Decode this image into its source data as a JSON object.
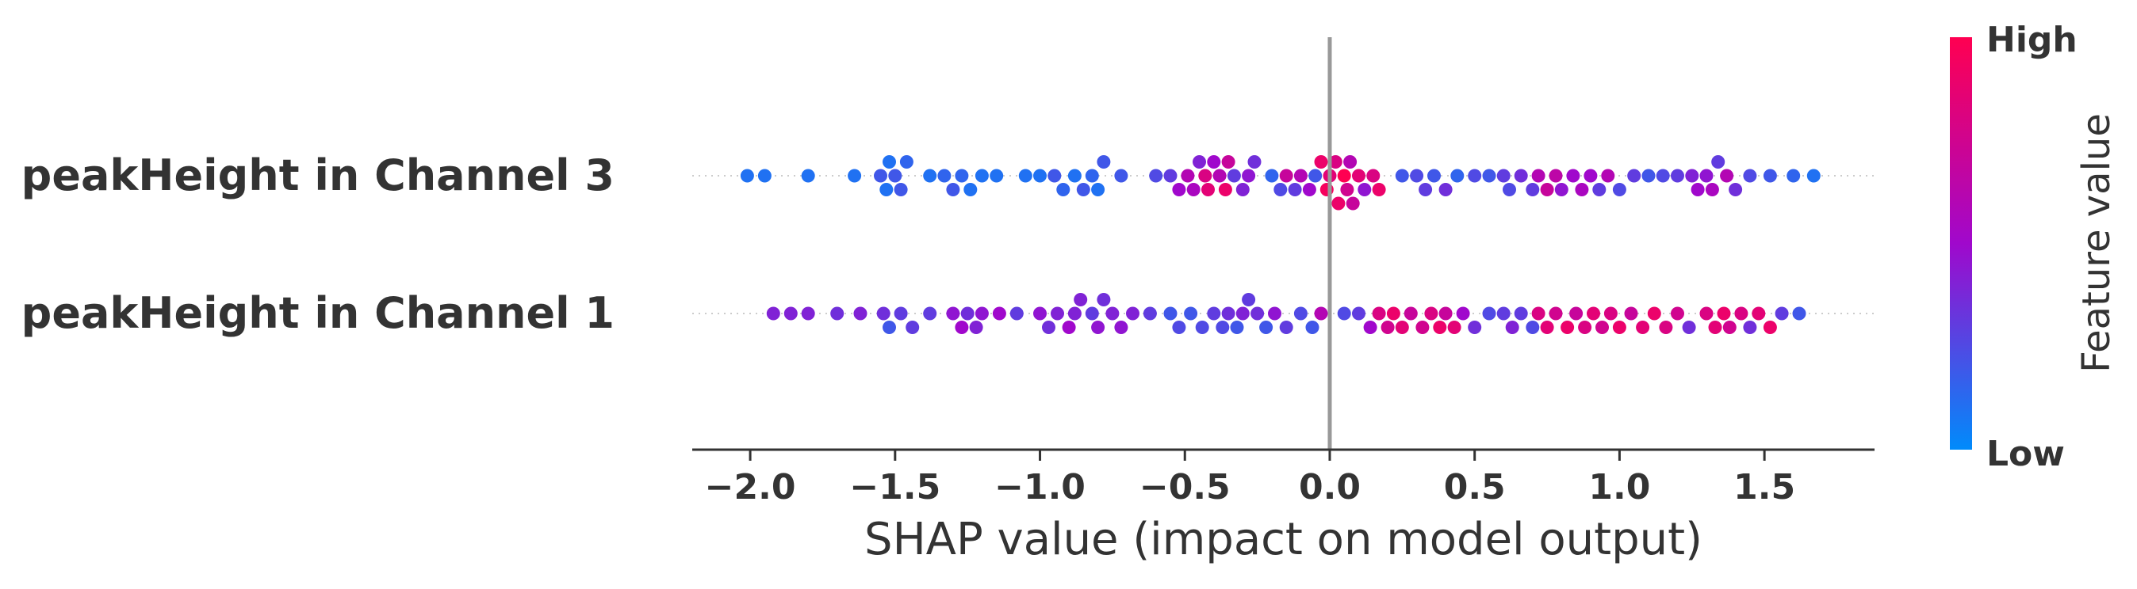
{
  "chart_data": {
    "type": "scatter",
    "subtype": "shap-beeswarm-summary",
    "xlabel": "SHAP value (impact on model output)",
    "xlim": [
      -2.2,
      1.88
    ],
    "xticks": [
      -2.0,
      -1.5,
      -1.0,
      -0.5,
      0.0,
      0.5,
      1.0,
      1.5
    ],
    "xtick_labels": [
      "−2.0",
      "−1.5",
      "−1.0",
      "−0.5",
      "0.0",
      "0.5",
      "1.0",
      "1.5"
    ],
    "zero_line": 0.0,
    "grid": false,
    "colorbar": {
      "label": "Feature value",
      "high_label": "High",
      "low_label": "Low",
      "low_color": "#008bfb",
      "high_color": "#ff0051",
      "placement": "right"
    },
    "features": [
      {
        "name": "peakHeight in Channel 3",
        "points": [
          [
            -2.01,
            0.1
          ],
          [
            -1.95,
            0.1
          ],
          [
            -1.8,
            0.1
          ],
          [
            -1.64,
            0.1
          ],
          [
            -1.55,
            0.2
          ],
          [
            -1.53,
            0.1
          ],
          [
            -1.52,
            0.1
          ],
          [
            -1.5,
            0.2
          ],
          [
            -1.48,
            0.2
          ],
          [
            -1.46,
            0.15
          ],
          [
            -1.38,
            0.1
          ],
          [
            -1.33,
            0.15
          ],
          [
            -1.3,
            0.2
          ],
          [
            -1.27,
            0.15
          ],
          [
            -1.24,
            0.1
          ],
          [
            -1.2,
            0.1
          ],
          [
            -1.15,
            0.1
          ],
          [
            -1.05,
            0.1
          ],
          [
            -1.0,
            0.1
          ],
          [
            -0.95,
            0.2
          ],
          [
            -0.92,
            0.15
          ],
          [
            -0.88,
            0.1
          ],
          [
            -0.85,
            0.2
          ],
          [
            -0.82,
            0.15
          ],
          [
            -0.8,
            0.1
          ],
          [
            -0.78,
            0.2
          ],
          [
            -0.72,
            0.2
          ],
          [
            -0.6,
            0.25
          ],
          [
            -0.55,
            0.3
          ],
          [
            -0.52,
            0.5
          ],
          [
            -0.49,
            0.6
          ],
          [
            -0.47,
            0.55
          ],
          [
            -0.45,
            0.4
          ],
          [
            -0.43,
            0.8
          ],
          [
            -0.42,
            0.85
          ],
          [
            -0.4,
            0.5
          ],
          [
            -0.38,
            0.6
          ],
          [
            -0.36,
            0.9
          ],
          [
            -0.35,
            0.7
          ],
          [
            -0.33,
            0.3
          ],
          [
            -0.3,
            0.4
          ],
          [
            -0.28,
            0.45
          ],
          [
            -0.26,
            0.35
          ],
          [
            -0.2,
            0.15
          ],
          [
            -0.17,
            0.25
          ],
          [
            -0.15,
            0.7
          ],
          [
            -0.12,
            0.3
          ],
          [
            -0.1,
            0.6
          ],
          [
            -0.07,
            0.5
          ],
          [
            -0.05,
            0.2
          ],
          [
            -0.03,
            0.9
          ],
          [
            -0.01,
            0.95
          ],
          [
            0.0,
            0.85
          ],
          [
            0.02,
            0.8
          ],
          [
            0.03,
            0.9
          ],
          [
            0.05,
            1.0
          ],
          [
            0.06,
            0.75
          ],
          [
            0.07,
            0.6
          ],
          [
            0.08,
            0.7
          ],
          [
            0.1,
            0.85
          ],
          [
            0.12,
            0.45
          ],
          [
            0.15,
            0.8
          ],
          [
            0.17,
            0.9
          ],
          [
            0.25,
            0.2
          ],
          [
            0.3,
            0.25
          ],
          [
            0.33,
            0.3
          ],
          [
            0.36,
            0.2
          ],
          [
            0.4,
            0.35
          ],
          [
            0.44,
            0.15
          ],
          [
            0.5,
            0.25
          ],
          [
            0.55,
            0.2
          ],
          [
            0.6,
            0.3
          ],
          [
            0.62,
            0.25
          ],
          [
            0.66,
            0.35
          ],
          [
            0.7,
            0.3
          ],
          [
            0.72,
            0.6
          ],
          [
            0.75,
            0.7
          ],
          [
            0.78,
            0.65
          ],
          [
            0.8,
            0.45
          ],
          [
            0.84,
            0.5
          ],
          [
            0.87,
            0.55
          ],
          [
            0.9,
            0.5
          ],
          [
            0.93,
            0.3
          ],
          [
            0.96,
            0.6
          ],
          [
            1.0,
            0.25
          ],
          [
            1.05,
            0.3
          ],
          [
            1.1,
            0.2
          ],
          [
            1.15,
            0.25
          ],
          [
            1.2,
            0.3
          ],
          [
            1.25,
            0.4
          ],
          [
            1.27,
            0.5
          ],
          [
            1.3,
            0.45
          ],
          [
            1.32,
            0.55
          ],
          [
            1.34,
            0.3
          ],
          [
            1.37,
            0.6
          ],
          [
            1.4,
            0.35
          ],
          [
            1.45,
            0.25
          ],
          [
            1.52,
            0.2
          ],
          [
            1.6,
            0.15
          ],
          [
            1.67,
            0.1
          ]
        ]
      },
      {
        "name": "peakHeight in Channel 1",
        "points": [
          [
            -1.92,
            0.4
          ],
          [
            -1.86,
            0.4
          ],
          [
            -1.8,
            0.4
          ],
          [
            -1.7,
            0.35
          ],
          [
            -1.62,
            0.4
          ],
          [
            -1.54,
            0.35
          ],
          [
            -1.52,
            0.2
          ],
          [
            -1.48,
            0.3
          ],
          [
            -1.44,
            0.3
          ],
          [
            -1.38,
            0.3
          ],
          [
            -1.3,
            0.45
          ],
          [
            -1.27,
            0.5
          ],
          [
            -1.25,
            0.35
          ],
          [
            -1.22,
            0.4
          ],
          [
            -1.2,
            0.45
          ],
          [
            -1.14,
            0.5
          ],
          [
            -1.08,
            0.3
          ],
          [
            -1.0,
            0.45
          ],
          [
            -0.97,
            0.35
          ],
          [
            -0.94,
            0.4
          ],
          [
            -0.9,
            0.5
          ],
          [
            -0.88,
            0.4
          ],
          [
            -0.86,
            0.4
          ],
          [
            -0.82,
            0.3
          ],
          [
            -0.8,
            0.45
          ],
          [
            -0.78,
            0.35
          ],
          [
            -0.75,
            0.4
          ],
          [
            -0.72,
            0.45
          ],
          [
            -0.68,
            0.4
          ],
          [
            -0.62,
            0.3
          ],
          [
            -0.55,
            0.2
          ],
          [
            -0.52,
            0.25
          ],
          [
            -0.48,
            0.2
          ],
          [
            -0.44,
            0.25
          ],
          [
            -0.4,
            0.3
          ],
          [
            -0.37,
            0.25
          ],
          [
            -0.35,
            0.35
          ],
          [
            -0.32,
            0.2
          ],
          [
            -0.3,
            0.4
          ],
          [
            -0.28,
            0.3
          ],
          [
            -0.25,
            0.35
          ],
          [
            -0.22,
            0.2
          ],
          [
            -0.19,
            0.45
          ],
          [
            -0.15,
            0.3
          ],
          [
            -0.1,
            0.25
          ],
          [
            -0.06,
            0.2
          ],
          [
            -0.03,
            0.6
          ],
          [
            0.05,
            0.25
          ],
          [
            0.1,
            0.3
          ],
          [
            0.14,
            0.5
          ],
          [
            0.17,
            0.8
          ],
          [
            0.2,
            0.75
          ],
          [
            0.22,
            0.9
          ],
          [
            0.25,
            0.85
          ],
          [
            0.28,
            0.7
          ],
          [
            0.32,
            0.75
          ],
          [
            0.35,
            0.8
          ],
          [
            0.38,
            0.9
          ],
          [
            0.4,
            0.7
          ],
          [
            0.43,
            0.85
          ],
          [
            0.46,
            0.5
          ],
          [
            0.5,
            0.35
          ],
          [
            0.55,
            0.25
          ],
          [
            0.6,
            0.3
          ],
          [
            0.63,
            0.4
          ],
          [
            0.66,
            0.3
          ],
          [
            0.7,
            0.25
          ],
          [
            0.72,
            0.8
          ],
          [
            0.75,
            0.85
          ],
          [
            0.78,
            0.75
          ],
          [
            0.82,
            0.9
          ],
          [
            0.85,
            0.7
          ],
          [
            0.88,
            0.8
          ],
          [
            0.91,
            0.85
          ],
          [
            0.94,
            0.75
          ],
          [
            0.97,
            0.8
          ],
          [
            1.0,
            0.9
          ],
          [
            1.04,
            0.7
          ],
          [
            1.08,
            0.85
          ],
          [
            1.12,
            0.9
          ],
          [
            1.16,
            0.8
          ],
          [
            1.2,
            0.75
          ],
          [
            1.24,
            0.35
          ],
          [
            1.3,
            0.8
          ],
          [
            1.33,
            0.85
          ],
          [
            1.36,
            0.9
          ],
          [
            1.38,
            0.75
          ],
          [
            1.42,
            0.8
          ],
          [
            1.45,
            0.35
          ],
          [
            1.48,
            0.85
          ],
          [
            1.52,
            0.9
          ],
          [
            1.56,
            0.3
          ],
          [
            1.62,
            0.2
          ]
        ]
      }
    ]
  }
}
